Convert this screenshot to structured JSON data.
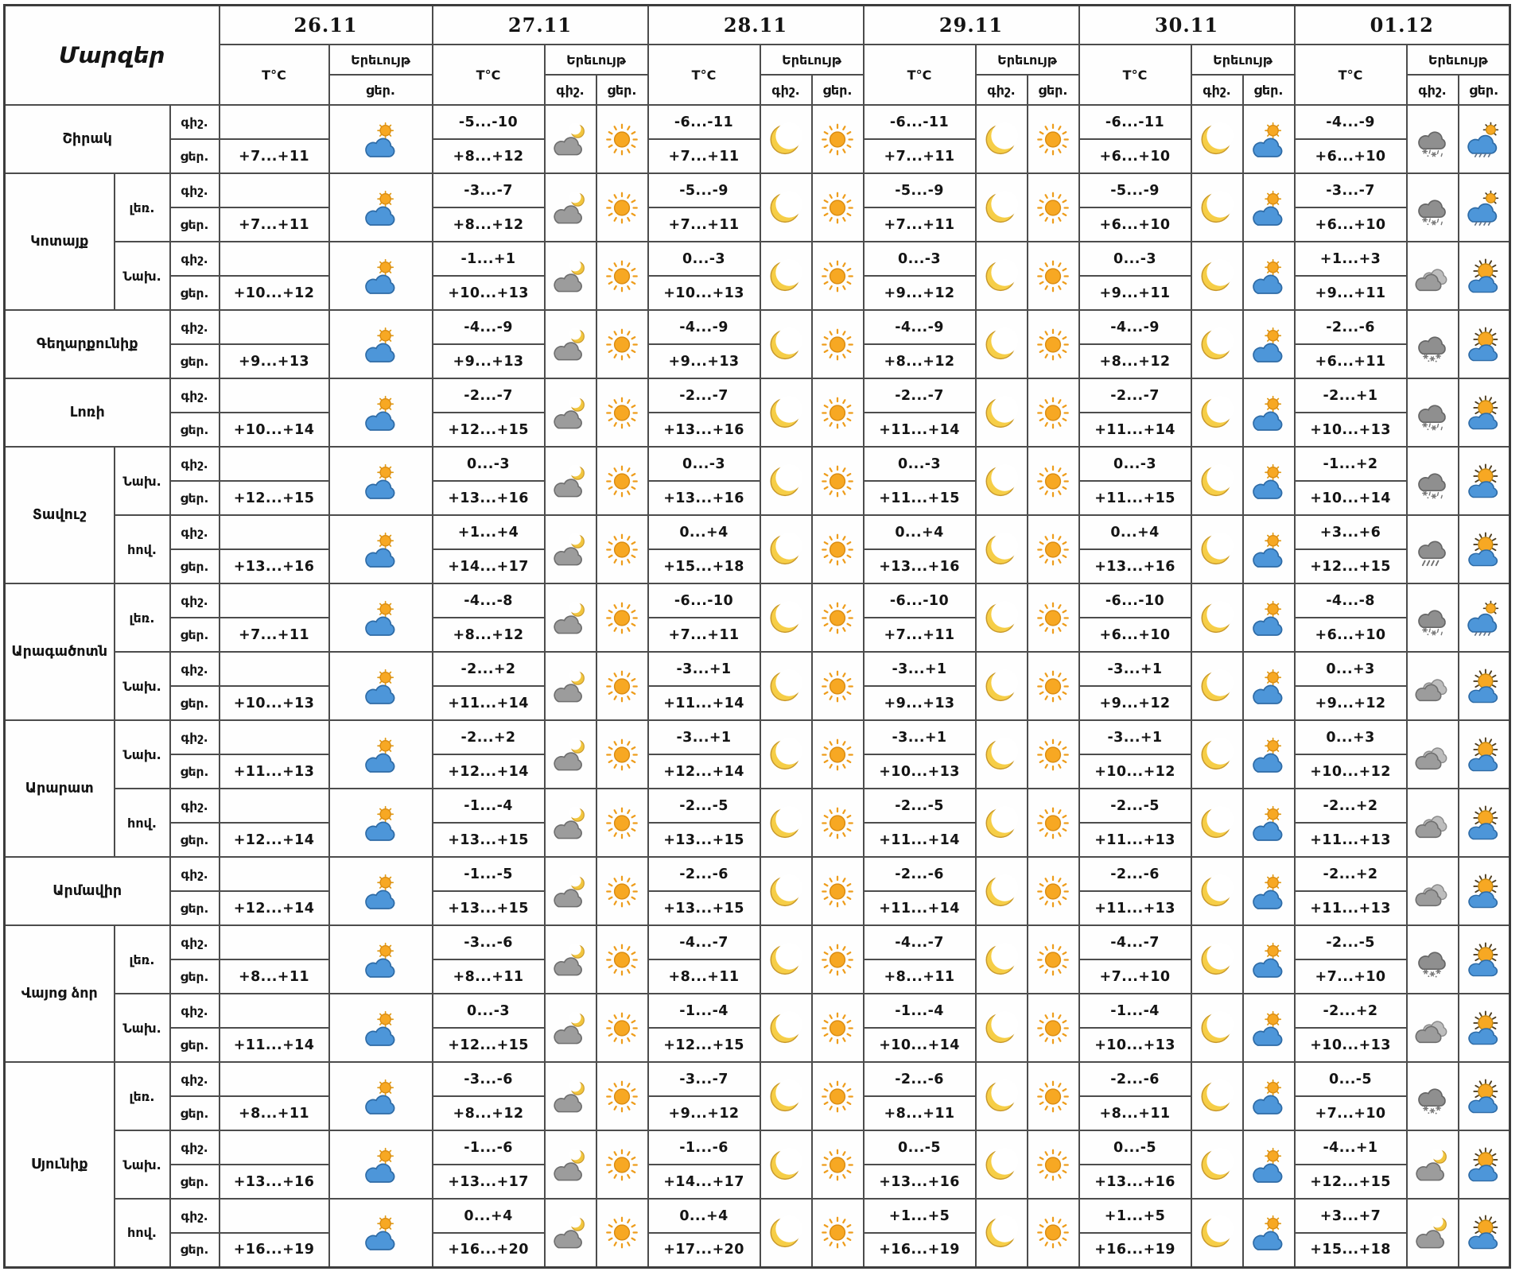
{
  "header": {
    "regions_label": "Մարզեր",
    "temp_label": "T°C",
    "phenomenon_label": "Երեւույթ",
    "night_label": "գիշ.",
    "day_label": "ցեր.",
    "dates": [
      "26.11",
      "27.11",
      "28.11",
      "29.11",
      "30.11",
      "01.12"
    ]
  },
  "colors": {
    "grid": "#4c4c4c",
    "text": "#141414",
    "sun": "#F7A823",
    "moon": "#F6CE47",
    "cloud_blue": "#4D96D9",
    "cloud_grey": "#9C9C9C"
  },
  "chart_data": {
    "type": "table",
    "title": "Regional weather forecast by date (night / day temperatures and phenomena)",
    "columns": [
      "26.11",
      "27.11",
      "28.11",
      "29.11",
      "30.11",
      "01.12"
    ],
    "rows": [
      {
        "region": "Շիրակ",
        "span": 1,
        "sub": "",
        "t26": "+7...+11",
        "i26": "partly-cloudy-day",
        "temps": [
          [
            "-5...-10",
            "+8...+12"
          ],
          [
            "-6...-11",
            "+7...+11"
          ],
          [
            "-6...-11",
            "+7...+11"
          ],
          [
            "-6...-11",
            "+6...+10"
          ],
          [
            "-4...-9",
            "+6...+10"
          ]
        ],
        "icons": [
          [
            "cloud-moon",
            "sun"
          ],
          [
            "moon",
            "sun"
          ],
          [
            "moon",
            "sun"
          ],
          [
            "moon",
            "partly-cloudy-day"
          ],
          [
            "cloud-sleet",
            "rain-sun"
          ]
        ]
      },
      {
        "region": "Կոտայք",
        "span": 2,
        "sub": "լեռ.",
        "t26": "+7...+11",
        "i26": "partly-cloudy-day",
        "temps": [
          [
            "-3...-7",
            "+8...+12"
          ],
          [
            "-5...-9",
            "+7...+11"
          ],
          [
            "-5...-9",
            "+7...+11"
          ],
          [
            "-5...-9",
            "+6...+10"
          ],
          [
            "-3...-7",
            "+6...+10"
          ]
        ],
        "icons": [
          [
            "cloud-moon",
            "sun"
          ],
          [
            "moon",
            "sun"
          ],
          [
            "moon",
            "sun"
          ],
          [
            "moon",
            "partly-cloudy-day"
          ],
          [
            "cloud-sleet",
            "rain-sun"
          ]
        ]
      },
      {
        "region": null,
        "span": 0,
        "sub": "Նախ.",
        "t26": "+10...+12",
        "i26": "partly-cloudy-day",
        "temps": [
          [
            "-1...+1",
            "+10...+13"
          ],
          [
            "0...-3",
            "+10...+13"
          ],
          [
            "0...-3",
            "+9...+12"
          ],
          [
            "0...-3",
            "+9...+11"
          ],
          [
            "+1...+3",
            "+9...+11"
          ]
        ],
        "icons": [
          [
            "cloud-moon",
            "sun"
          ],
          [
            "moon",
            "sun"
          ],
          [
            "moon",
            "sun"
          ],
          [
            "moon",
            "partly-cloudy-day"
          ],
          [
            "cloudy",
            "sun-cloud"
          ]
        ]
      },
      {
        "region": "Գեղարքունիք",
        "span": 1,
        "sub": "",
        "t26": "+9...+13",
        "i26": "partly-cloudy-day",
        "temps": [
          [
            "-4...-9",
            "+9...+13"
          ],
          [
            "-4...-9",
            "+9...+13"
          ],
          [
            "-4...-9",
            "+8...+12"
          ],
          [
            "-4...-9",
            "+8...+12"
          ],
          [
            "-2...-6",
            "+6...+11"
          ]
        ],
        "icons": [
          [
            "cloud-moon",
            "sun"
          ],
          [
            "moon",
            "sun"
          ],
          [
            "moon",
            "sun"
          ],
          [
            "moon",
            "partly-cloudy-day"
          ],
          [
            "cloud-snow",
            "sun-cloud"
          ]
        ]
      },
      {
        "region": "Լոռի",
        "span": 1,
        "sub": "",
        "t26": "+10...+14",
        "i26": "partly-cloudy-day",
        "temps": [
          [
            "-2...-7",
            "+12...+15"
          ],
          [
            "-2...-7",
            "+13...+16"
          ],
          [
            "-2...-7",
            "+11...+14"
          ],
          [
            "-2...-7",
            "+11...+14"
          ],
          [
            "-2...+1",
            "+10...+13"
          ]
        ],
        "icons": [
          [
            "cloud-moon",
            "sun"
          ],
          [
            "moon",
            "sun"
          ],
          [
            "moon",
            "sun"
          ],
          [
            "moon",
            "partly-cloudy-day"
          ],
          [
            "cloud-sleet",
            "sun-cloud"
          ]
        ]
      },
      {
        "region": "Տավուշ",
        "span": 2,
        "sub": "Նախ.",
        "t26": "+12...+15",
        "i26": "partly-cloudy-day",
        "temps": [
          [
            "0...-3",
            "+13...+16"
          ],
          [
            "0...-3",
            "+13...+16"
          ],
          [
            "0...-3",
            "+11...+15"
          ],
          [
            "0...-3",
            "+11...+15"
          ],
          [
            "-1...+2",
            "+10...+14"
          ]
        ],
        "icons": [
          [
            "cloud-moon",
            "sun"
          ],
          [
            "moon",
            "sun"
          ],
          [
            "moon",
            "sun"
          ],
          [
            "moon",
            "partly-cloudy-day"
          ],
          [
            "cloud-sleet",
            "sun-cloud"
          ]
        ]
      },
      {
        "region": null,
        "span": 0,
        "sub": "հով.",
        "t26": "+13...+16",
        "i26": "partly-cloudy-day",
        "temps": [
          [
            "+1...+4",
            "+14...+17"
          ],
          [
            "0...+4",
            "+15...+18"
          ],
          [
            "0...+4",
            "+13...+16"
          ],
          [
            "0...+4",
            "+13...+16"
          ],
          [
            "+3...+6",
            "+12...+15"
          ]
        ],
        "icons": [
          [
            "cloud-moon",
            "sun"
          ],
          [
            "moon",
            "sun"
          ],
          [
            "moon",
            "sun"
          ],
          [
            "moon",
            "partly-cloudy-day"
          ],
          [
            "cloud-rain",
            "sun-cloud"
          ]
        ]
      },
      {
        "region": "Արագածոտն",
        "span": 2,
        "sub": "լեռ.",
        "t26": "+7...+11",
        "i26": "partly-cloudy-day",
        "temps": [
          [
            "-4...-8",
            "+8...+12"
          ],
          [
            "-6...-10",
            "+7...+11"
          ],
          [
            "-6...-10",
            "+7...+11"
          ],
          [
            "-6...-10",
            "+6...+10"
          ],
          [
            "-4...-8",
            "+6...+10"
          ]
        ],
        "icons": [
          [
            "cloud-moon",
            "sun"
          ],
          [
            "moon",
            "sun"
          ],
          [
            "moon",
            "sun"
          ],
          [
            "moon",
            "partly-cloudy-day"
          ],
          [
            "cloud-sleet",
            "rain-sun"
          ]
        ]
      },
      {
        "region": null,
        "span": 0,
        "sub": "Նախ.",
        "t26": "+10...+13",
        "i26": "partly-cloudy-day",
        "temps": [
          [
            "-2...+2",
            "+11...+14"
          ],
          [
            "-3...+1",
            "+11...+14"
          ],
          [
            "-3...+1",
            "+9...+13"
          ],
          [
            "-3...+1",
            "+9...+12"
          ],
          [
            "0...+3",
            "+9...+12"
          ]
        ],
        "icons": [
          [
            "cloud-moon",
            "sun"
          ],
          [
            "moon",
            "sun"
          ],
          [
            "moon",
            "sun"
          ],
          [
            "moon",
            "partly-cloudy-day"
          ],
          [
            "cloudy",
            "sun-cloud"
          ]
        ]
      },
      {
        "region": "Արարատ",
        "span": 2,
        "sub": "Նախ.",
        "t26": "+11...+13",
        "i26": "partly-cloudy-day",
        "temps": [
          [
            "-2...+2",
            "+12...+14"
          ],
          [
            "-3...+1",
            "+12...+14"
          ],
          [
            "-3...+1",
            "+10...+13"
          ],
          [
            "-3...+1",
            "+10...+12"
          ],
          [
            "0...+3",
            "+10...+12"
          ]
        ],
        "icons": [
          [
            "cloud-moon",
            "sun"
          ],
          [
            "moon",
            "sun"
          ],
          [
            "moon",
            "sun"
          ],
          [
            "moon",
            "partly-cloudy-day"
          ],
          [
            "cloudy",
            "sun-cloud"
          ]
        ]
      },
      {
        "region": null,
        "span": 0,
        "sub": "հով.",
        "t26": "+12...+14",
        "i26": "partly-cloudy-day",
        "temps": [
          [
            "-1...-4",
            "+13...+15"
          ],
          [
            "-2...-5",
            "+13...+15"
          ],
          [
            "-2...-5",
            "+11...+14"
          ],
          [
            "-2...-5",
            "+11...+13"
          ],
          [
            "-2...+2",
            "+11...+13"
          ]
        ],
        "icons": [
          [
            "cloud-moon",
            "sun"
          ],
          [
            "moon",
            "sun"
          ],
          [
            "moon",
            "sun"
          ],
          [
            "moon",
            "partly-cloudy-day"
          ],
          [
            "cloudy",
            "sun-cloud"
          ]
        ]
      },
      {
        "region": "Արմավիր",
        "span": 1,
        "sub": "",
        "t26": "+12...+14",
        "i26": "partly-cloudy-day",
        "temps": [
          [
            "-1...-5",
            "+13...+15"
          ],
          [
            "-2...-6",
            "+13...+15"
          ],
          [
            "-2...-6",
            "+11...+14"
          ],
          [
            "-2...-6",
            "+11...+13"
          ],
          [
            "-2...+2",
            "+11...+13"
          ]
        ],
        "icons": [
          [
            "cloud-moon",
            "sun"
          ],
          [
            "moon",
            "sun"
          ],
          [
            "moon",
            "sun"
          ],
          [
            "moon",
            "partly-cloudy-day"
          ],
          [
            "cloudy",
            "sun-cloud"
          ]
        ]
      },
      {
        "region": "Վայոց ձոր",
        "span": 2,
        "sub": "լեռ.",
        "t26": "+8...+11",
        "i26": "partly-cloudy-day",
        "temps": [
          [
            "-3...-6",
            "+8...+11"
          ],
          [
            "-4...-7",
            "+8...+11"
          ],
          [
            "-4...-7",
            "+8...+11"
          ],
          [
            "-4...-7",
            "+7...+10"
          ],
          [
            "-2...-5",
            "+7...+10"
          ]
        ],
        "icons": [
          [
            "cloud-moon",
            "sun"
          ],
          [
            "moon",
            "sun"
          ],
          [
            "moon",
            "sun"
          ],
          [
            "moon",
            "partly-cloudy-day"
          ],
          [
            "cloud-snow",
            "sun-cloud"
          ]
        ]
      },
      {
        "region": null,
        "span": 0,
        "sub": "Նախ.",
        "t26": "+11...+14",
        "i26": "partly-cloudy-day",
        "temps": [
          [
            "0...-3",
            "+12...+15"
          ],
          [
            "-1...-4",
            "+12...+15"
          ],
          [
            "-1...-4",
            "+10...+14"
          ],
          [
            "-1...-4",
            "+10...+13"
          ],
          [
            "-2...+2",
            "+10...+13"
          ]
        ],
        "icons": [
          [
            "cloud-moon",
            "sun"
          ],
          [
            "moon",
            "sun"
          ],
          [
            "moon",
            "sun"
          ],
          [
            "moon",
            "partly-cloudy-day"
          ],
          [
            "cloudy",
            "sun-cloud"
          ]
        ]
      },
      {
        "region": "Սյունիք",
        "span": 3,
        "sub": "լեռ.",
        "t26": "+8...+11",
        "i26": "partly-cloudy-day",
        "temps": [
          [
            "-3...-6",
            "+8...+12"
          ],
          [
            "-3...-7",
            "+9...+12"
          ],
          [
            "-2...-6",
            "+8...+11"
          ],
          [
            "-2...-6",
            "+8...+11"
          ],
          [
            "0...-5",
            "+7...+10"
          ]
        ],
        "icons": [
          [
            "cloud-moon",
            "sun"
          ],
          [
            "moon",
            "sun"
          ],
          [
            "moon",
            "sun"
          ],
          [
            "moon",
            "partly-cloudy-day"
          ],
          [
            "cloud-snow",
            "sun-cloud"
          ]
        ]
      },
      {
        "region": null,
        "span": 0,
        "sub": "Նախ.",
        "t26": "+13...+16",
        "i26": "partly-cloudy-day",
        "temps": [
          [
            "-1...-6",
            "+13...+17"
          ],
          [
            "-1...-6",
            "+14...+17"
          ],
          [
            "0...-5",
            "+13...+16"
          ],
          [
            "0...-5",
            "+13...+16"
          ],
          [
            "-4...+1",
            "+12...+15"
          ]
        ],
        "icons": [
          [
            "cloud-moon",
            "sun"
          ],
          [
            "moon",
            "sun"
          ],
          [
            "moon",
            "sun"
          ],
          [
            "moon",
            "partly-cloudy-day"
          ],
          [
            "cloud-moon",
            "sun-cloud"
          ]
        ]
      },
      {
        "region": null,
        "span": 0,
        "sub": "հով.",
        "t26": "+16...+19",
        "i26": "partly-cloudy-day",
        "temps": [
          [
            "0...+4",
            "+16...+20"
          ],
          [
            "0...+4",
            "+17...+20"
          ],
          [
            "+1...+5",
            "+16...+19"
          ],
          [
            "+1...+5",
            "+16...+19"
          ],
          [
            "+3...+7",
            "+15...+18"
          ]
        ],
        "icons": [
          [
            "cloud-moon",
            "sun"
          ],
          [
            "moon",
            "sun"
          ],
          [
            "moon",
            "sun"
          ],
          [
            "moon",
            "partly-cloudy-day"
          ],
          [
            "cloud-moon",
            "sun-cloud"
          ]
        ]
      }
    ]
  }
}
